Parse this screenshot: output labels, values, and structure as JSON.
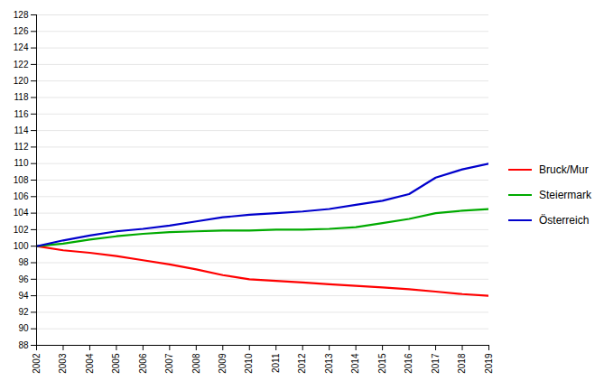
{
  "chart_data": {
    "type": "line",
    "x": [
      2002,
      2003,
      2004,
      2005,
      2006,
      2007,
      2008,
      2009,
      2010,
      2011,
      2012,
      2013,
      2014,
      2015,
      2016,
      2017,
      2018,
      2019
    ],
    "series": [
      {
        "name": "Bruck/Mur",
        "color": "#ff0000",
        "values": [
          100.0,
          99.5,
          99.2,
          98.8,
          98.3,
          97.8,
          97.2,
          96.5,
          96.0,
          95.8,
          95.6,
          95.4,
          95.2,
          95.0,
          94.8,
          94.5,
          94.2,
          94.0
        ]
      },
      {
        "name": "Steiermark",
        "color": "#00aa00",
        "values": [
          100.0,
          100.3,
          100.8,
          101.2,
          101.5,
          101.7,
          101.8,
          101.9,
          101.9,
          102.0,
          102.0,
          102.1,
          102.3,
          102.8,
          103.3,
          104.0,
          104.3,
          104.5
        ]
      },
      {
        "name": "Österreich",
        "color": "#0000cc",
        "values": [
          100.0,
          100.7,
          101.3,
          101.8,
          102.1,
          102.5,
          103.0,
          103.5,
          103.8,
          104.0,
          104.2,
          104.5,
          105.0,
          105.5,
          106.3,
          108.3,
          109.3,
          110.0
        ]
      }
    ],
    "xlim": [
      2002,
      2019
    ],
    "xticks": [
      2002,
      2003,
      2004,
      2005,
      2006,
      2007,
      2008,
      2009,
      2010,
      2011,
      2012,
      2013,
      2014,
      2015,
      2016,
      2017,
      2018,
      2019
    ],
    "ylim": [
      88,
      128
    ],
    "yticks": [
      88,
      90,
      92,
      94,
      96,
      98,
      100,
      102,
      104,
      106,
      108,
      110,
      112,
      114,
      116,
      118,
      120,
      122,
      124,
      126,
      128
    ],
    "grid": true,
    "legend": "right"
  }
}
